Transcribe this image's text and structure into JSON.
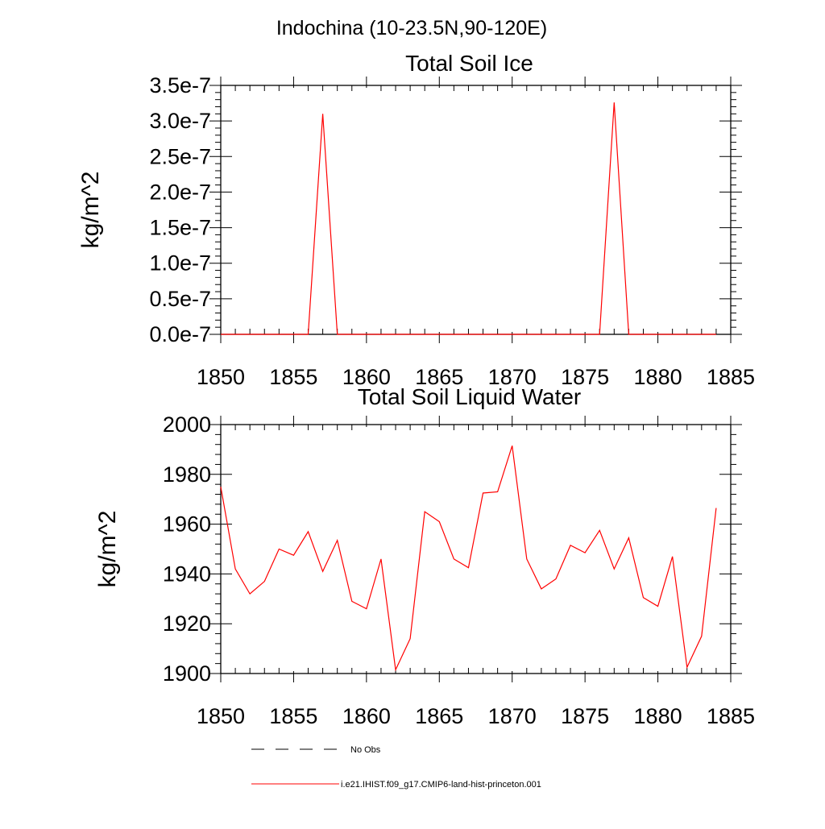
{
  "suptitle": "Indochina (10-23.5N,90-120E)",
  "chart_data": [
    {
      "type": "line",
      "title": "Total Soil Ice",
      "ylabel": "kg/m^2",
      "xlim": [
        1850,
        1885
      ],
      "ylim": [
        0,
        3.5e-07
      ],
      "x_ticks": [
        1850,
        1855,
        1860,
        1865,
        1870,
        1875,
        1880,
        1885
      ],
      "x_tick_labels": [
        "1850",
        "1855",
        "1860",
        "1865",
        "1870",
        "1875",
        "1880",
        "1885"
      ],
      "y_ticks": [
        0,
        5e-08,
        1e-07,
        1.5e-07,
        2e-07,
        2.5e-07,
        3e-07,
        3.5e-07
      ],
      "y_tick_labels": [
        "0.0e-7",
        "0.5e-7",
        "1.0e-7",
        "1.5e-7",
        "2.0e-7",
        "2.5e-7",
        "3.0e-7",
        "3.5e-7"
      ],
      "series": [
        {
          "name": "i.e21.IHIST.f09_g17.CMIP6-land-hist-princeton.001",
          "color": "#ff0000",
          "x": [
            1850,
            1851,
            1852,
            1853,
            1854,
            1855,
            1856,
            1857,
            1858,
            1859,
            1860,
            1861,
            1862,
            1863,
            1864,
            1865,
            1866,
            1867,
            1868,
            1869,
            1870,
            1871,
            1872,
            1873,
            1874,
            1875,
            1876,
            1877,
            1878,
            1879,
            1880,
            1881,
            1882,
            1883,
            1884
          ],
          "y": [
            0,
            0,
            0,
            0,
            0,
            0,
            0,
            3.1e-07,
            0,
            0,
            0,
            0,
            0,
            0,
            0,
            0,
            0,
            0,
            0,
            0,
            0,
            0,
            0,
            0,
            0,
            0,
            0,
            3.26e-07,
            0,
            0,
            0,
            0,
            0,
            0,
            0
          ]
        }
      ]
    },
    {
      "type": "line",
      "title": "Total Soil Liquid Water",
      "ylabel": "kg/m^2",
      "xlim": [
        1850,
        1885
      ],
      "ylim": [
        1900,
        2000
      ],
      "x_ticks": [
        1850,
        1855,
        1860,
        1865,
        1870,
        1875,
        1880,
        1885
      ],
      "x_tick_labels": [
        "1850",
        "1855",
        "1860",
        "1865",
        "1870",
        "1875",
        "1880",
        "1885"
      ],
      "y_ticks": [
        1900,
        1920,
        1940,
        1960,
        1980,
        2000
      ],
      "y_tick_labels": [
        "1900",
        "1920",
        "1940",
        "1960",
        "1980",
        "2000"
      ],
      "series": [
        {
          "name": "i.e21.IHIST.f09_g17.CMIP6-land-hist-princeton.001",
          "color": "#ff0000",
          "x": [
            1850,
            1851,
            1852,
            1853,
            1854,
            1855,
            1856,
            1857,
            1858,
            1859,
            1860,
            1861,
            1862,
            1863,
            1864,
            1865,
            1866,
            1867,
            1868,
            1869,
            1870,
            1871,
            1872,
            1873,
            1874,
            1875,
            1876,
            1877,
            1878,
            1879,
            1880,
            1881,
            1882,
            1883,
            1884
          ],
          "y": [
            1975,
            1942,
            1932,
            1937,
            1950,
            1947.5,
            1957,
            1941,
            1953.5,
            1929,
            1926,
            1946,
            1901.5,
            1914,
            1965,
            1961,
            1946,
            1942.5,
            1972.5,
            1973,
            1991.5,
            1946,
            1934,
            1938,
            1951.5,
            1948.5,
            1957.5,
            1942,
            1954.5,
            1930.5,
            1927,
            1947,
            1902.5,
            1915,
            1966.5
          ]
        }
      ]
    }
  ],
  "legend": {
    "placement": "bottom",
    "entries": [
      {
        "label": "No Obs",
        "style": "dashed",
        "color": "#000000"
      },
      {
        "label": "i.e21.IHIST.f09_g17.CMIP6-land-hist-princeton.001",
        "style": "solid",
        "color": "#ff0000"
      }
    ]
  }
}
